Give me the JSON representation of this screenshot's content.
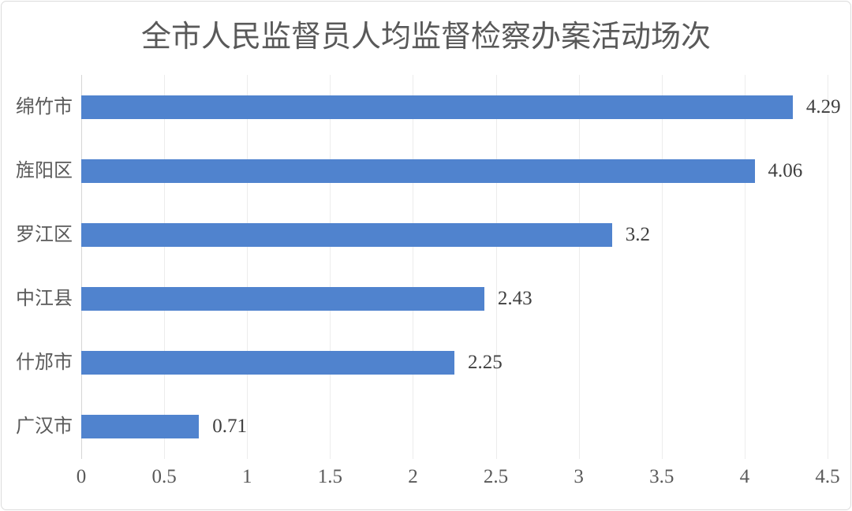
{
  "chart_data": {
    "type": "bar",
    "orientation": "horizontal",
    "title": "全市人民监督员人均监督检察办案活动场次",
    "categories": [
      "绵竹市",
      "旌阳区",
      "罗江区",
      "中江县",
      "什邡市",
      "广汉市"
    ],
    "values": [
      4.29,
      4.06,
      3.2,
      2.43,
      2.25,
      0.71
    ],
    "data_labels": [
      "4.29",
      "4.06",
      "3.2",
      "2.43",
      "2.25",
      "0.71"
    ],
    "x_ticks": [
      "0",
      "0.5",
      "1",
      "1.5",
      "2",
      "2.5",
      "3",
      "3.5",
      "4",
      "4.5"
    ],
    "xlim": [
      0,
      4.5
    ],
    "xlabel": "",
    "ylabel": "",
    "grid": true,
    "legend": "none",
    "colors": {
      "bar": "#5083CE",
      "title": "#595959",
      "category_label": "#595959",
      "data_label": "#3F3F3F",
      "tick_label": "#595959",
      "gridline": "#ECECEC",
      "axis_line": "#D6D6D6",
      "frame_border": "#DCDCDC",
      "background": "#FFFFFF"
    }
  }
}
